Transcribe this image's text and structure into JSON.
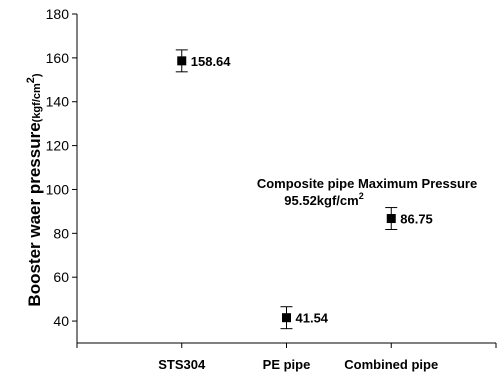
{
  "chart_data": {
    "type": "scatter",
    "ylabel": "Booster waer pressure",
    "ylabel_unit": "(kgf/cm",
    "ylabel_unit_sup": "2",
    "ylabel_unit_close": ")",
    "ylim": [
      30,
      180
    ],
    "yticks": [
      40,
      60,
      80,
      100,
      120,
      140,
      160,
      180
    ],
    "categories": [
      "STS304",
      "PE pipe",
      "Combined pipe"
    ],
    "points": [
      {
        "category": "STS304",
        "y": 158.64,
        "err": 5,
        "label": "158.64"
      },
      {
        "category": "PE pipe",
        "y": 41.54,
        "err": 5,
        "label": "41.54"
      },
      {
        "category": "Combined pipe",
        "y": 86.75,
        "err": 5,
        "label": "86.75"
      }
    ],
    "annotation": {
      "line1": "Composite pipe Maximum Pressure",
      "line2": "95.52kgf/cm",
      "line2_sup": "2"
    },
    "grid": false,
    "marker": "square",
    "color": "#000000"
  }
}
